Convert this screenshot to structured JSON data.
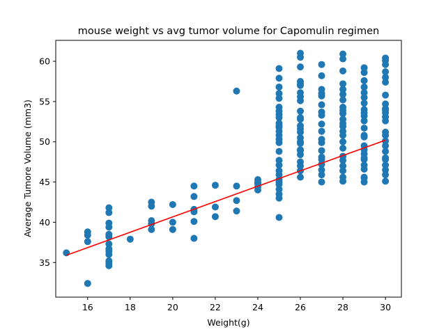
{
  "chart_data": {
    "type": "scatter",
    "title": "mouse weight vs avg tumor volume for Capomulin regimen",
    "xlabel": "Weight(g)",
    "ylabel": "Average Tumore Volume (mm3)",
    "xlim": [
      14.5,
      30.75
    ],
    "ylim": [
      30.7,
      62.6
    ],
    "xticks": [
      16,
      18,
      20,
      22,
      24,
      26,
      28,
      30
    ],
    "yticks": [
      35,
      40,
      45,
      50,
      55,
      60
    ],
    "grid": false,
    "colors": {
      "points": "#1f77b4",
      "regression": "#ff0000"
    },
    "series": [
      {
        "x": [
          15,
          16,
          16,
          16,
          16,
          17,
          17,
          17,
          17,
          17,
          17,
          17,
          17,
          17,
          17,
          17,
          17,
          17,
          18,
          19,
          19,
          19,
          19,
          19,
          20,
          20,
          20,
          21,
          21,
          21,
          21,
          21,
          21,
          22,
          22,
          22,
          23,
          23,
          23,
          23,
          24,
          24,
          24,
          24,
          24,
          25,
          25,
          25,
          25,
          25,
          25,
          25,
          25,
          25,
          25,
          25,
          25,
          25,
          25,
          25,
          25,
          25,
          25,
          25,
          25,
          25,
          25,
          25,
          25,
          25,
          25,
          25,
          25,
          26,
          26,
          26,
          26,
          26,
          26,
          26,
          26,
          26,
          26,
          26,
          26,
          26,
          26,
          26,
          26,
          26,
          26,
          26,
          26,
          26,
          26,
          26,
          26,
          26,
          27,
          27,
          27,
          27,
          27,
          27,
          27,
          27,
          27,
          27,
          27,
          27,
          27,
          27,
          27,
          27,
          27,
          27,
          27,
          28,
          28,
          28,
          28,
          28,
          28,
          28,
          28,
          28,
          28,
          28,
          28,
          28,
          28,
          28,
          28,
          28,
          28,
          28,
          28,
          28,
          28,
          28,
          29,
          29,
          29,
          29,
          29,
          29,
          29,
          29,
          29,
          29,
          29,
          29,
          29,
          29,
          29,
          29,
          29,
          29,
          29,
          29,
          29,
          29,
          29,
          29,
          30,
          30,
          30,
          30,
          30,
          30,
          30,
          30,
          30,
          30,
          30,
          30,
          30,
          30,
          30,
          30,
          30,
          30,
          30,
          30,
          30,
          30,
          30,
          30
        ],
        "y": [
          36.2,
          38.8,
          38.4,
          37.6,
          32.4,
          41.8,
          41.2,
          39.9,
          39.4,
          38.5,
          37.3,
          36.4,
          36.0,
          35.2,
          34.6,
          34.9,
          38.2,
          36.7,
          37.9,
          42.5,
          42.0,
          40.2,
          39.8,
          39.1,
          42.2,
          40.0,
          39.1,
          44.5,
          43.2,
          41.6,
          41.3,
          40.1,
          38.0,
          44.6,
          41.9,
          40.7,
          56.3,
          44.5,
          42.7,
          41.4,
          45.3,
          44.8,
          44.4,
          44.0,
          45.0,
          59.1,
          57.9,
          56.8,
          56.0,
          54.3,
          53.8,
          53.0,
          52.3,
          51.8,
          51.3,
          50.8,
          50.3,
          49.9,
          48.8,
          47.7,
          47.1,
          46.4,
          45.9,
          45.3,
          44.7,
          44.1,
          43.5,
          43.0,
          40.6,
          55.4,
          53.4,
          52.0,
          45.0,
          61.0,
          60.5,
          59.3,
          57.5,
          57.0,
          56.1,
          55.1,
          53.8,
          52.8,
          52.0,
          51.2,
          50.5,
          49.8,
          49.0,
          48.4,
          47.5,
          47.0,
          46.4,
          45.6,
          55.6,
          53.0,
          50.0,
          48.9,
          51.6,
          57.2,
          59.6,
          58.2,
          56.5,
          55.7,
          54.6,
          53.3,
          52.2,
          51.3,
          49.9,
          48.9,
          47.8,
          47.2,
          46.5,
          45.9,
          45.0,
          56.0,
          53.7,
          50.3,
          48.1,
          60.9,
          60.3,
          58.8,
          57.2,
          56.5,
          55.9,
          55.2,
          54.3,
          53.5,
          52.8,
          51.9,
          51.3,
          50.8,
          50.0,
          49.2,
          48.2,
          47.7,
          47.0,
          46.4,
          45.6,
          45.1,
          53.9,
          52.3,
          59.2,
          58.6,
          57.6,
          56.8,
          55.5,
          54.8,
          54.0,
          53.2,
          52.6,
          51.7,
          50.8,
          49.5,
          49.0,
          48.5,
          47.8,
          47.1,
          46.6,
          45.6,
          45.0,
          56.1,
          53.6,
          50.6,
          48.0,
          45.5,
          60.4,
          60.1,
          59.6,
          58.7,
          58.0,
          57.4,
          55.8,
          54.7,
          54.1,
          53.6,
          53.1,
          52.6,
          51.2,
          50.8,
          50.1,
          49.5,
          48.8,
          47.8,
          47.1,
          46.5,
          45.9,
          45.1,
          53.9,
          48.0
        ]
      }
    ],
    "regression": {
      "x": [
        15,
        30
      ],
      "y": [
        35.9,
        50.2
      ]
    }
  }
}
